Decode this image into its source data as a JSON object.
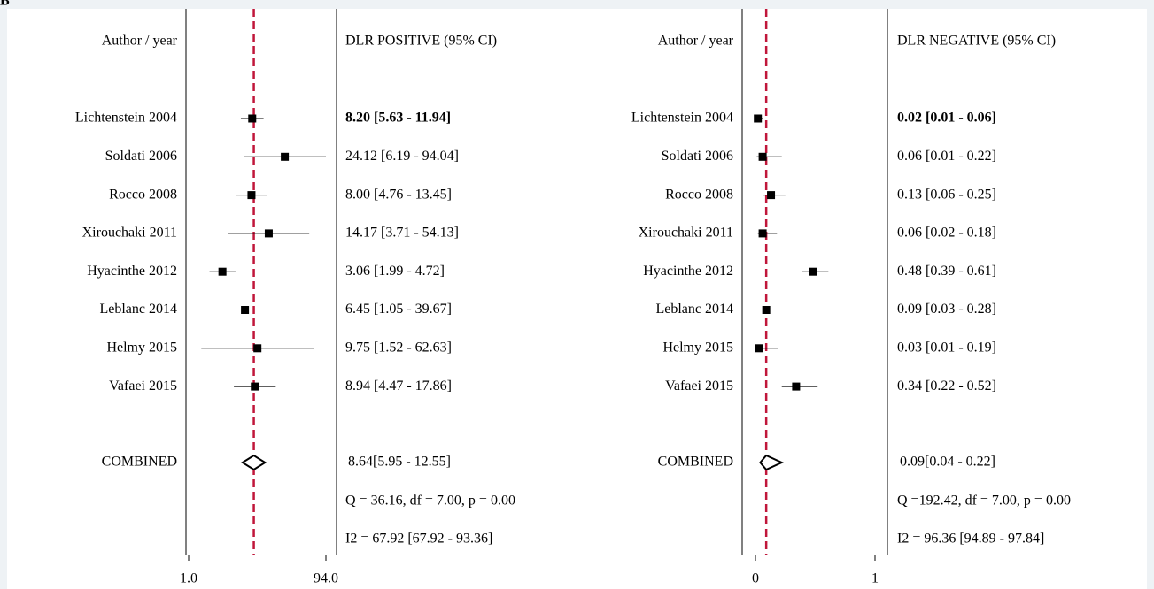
{
  "panel_label": "B",
  "chart_data": [
    {
      "type": "forest",
      "column_headers": [
        "Author / year",
        "DLR POSITIVE (95% CI)"
      ],
      "categories": [
        "Lichtenstein 2004",
        "Soldati 2006",
        "Rocco 2008",
        "Xirouchaki 2011",
        "Hyacinthe 2012",
        "Leblanc 2014",
        "Helmy 2015",
        "Vafaei 2015"
      ],
      "values": [
        8.2,
        24.12,
        8.0,
        14.17,
        3.06,
        6.45,
        9.75,
        8.94
      ],
      "lower": [
        5.63,
        6.19,
        4.76,
        3.71,
        1.99,
        1.05,
        1.52,
        4.47
      ],
      "upper": [
        11.94,
        94.04,
        13.45,
        54.13,
        4.72,
        39.67,
        62.63,
        17.86
      ],
      "value_labels": [
        "8.20 [5.63 - 11.94]",
        "24.12 [6.19 - 94.04]",
        "8.00 [4.76 - 13.45]",
        "14.17 [3.71 - 54.13]",
        "3.06 [1.99 - 4.72]",
        "6.45 [1.05 - 39.67]",
        "9.75 [1.52 - 62.63]",
        "8.94 [4.47 - 17.86]"
      ],
      "combined": {
        "name": "COMBINED",
        "value": 8.64,
        "lower": 5.95,
        "upper": 12.55,
        "value_label": "8.64[5.95 - 12.55]"
      },
      "heterogeneity": [
        "Q = 36.16, df = 7.00, p =  0.00",
        "I2 = 67.92 [67.92 - 93.36]"
      ],
      "log_scale": true,
      "xlim": [
        1,
        94
      ],
      "xticks": [
        {
          "value": 1,
          "label": "1.0"
        },
        {
          "value": 94,
          "label": "94.0"
        }
      ],
      "marker_color": "#000000",
      "reference_line_color": "#c0163a"
    },
    {
      "type": "forest",
      "column_headers": [
        "Author / year",
        "DLR NEGATIVE (95% CI)"
      ],
      "categories": [
        "Lichtenstein 2004",
        "Soldati 2006",
        "Rocco 2008",
        "Xirouchaki 2011",
        "Hyacinthe 2012",
        "Leblanc 2014",
        "Helmy 2015",
        "Vafaei 2015"
      ],
      "values": [
        0.02,
        0.06,
        0.13,
        0.06,
        0.48,
        0.09,
        0.03,
        0.34
      ],
      "lower": [
        0.01,
        0.01,
        0.06,
        0.02,
        0.39,
        0.03,
        0.01,
        0.22
      ],
      "upper": [
        0.06,
        0.22,
        0.25,
        0.18,
        0.61,
        0.28,
        0.19,
        0.52
      ],
      "value_labels": [
        "0.02 [0.01 - 0.06]",
        "0.06 [0.01 - 0.22]",
        "0.13 [0.06 - 0.25]",
        "0.06 [0.02 - 0.18]",
        "0.48 [0.39 - 0.61]",
        "0.09 [0.03 - 0.28]",
        "0.03 [0.01 - 0.19]",
        "0.34 [0.22 - 0.52]"
      ],
      "combined": {
        "name": "COMBINED",
        "value": 0.09,
        "lower": 0.04,
        "upper": 0.22,
        "value_label": "0.09[0.04 - 0.22]"
      },
      "heterogeneity": [
        "Q =192.42, df = 7.00, p =  0.00",
        "I2 = 96.36 [94.89 - 97.84]"
      ],
      "log_scale": false,
      "xlim": [
        0,
        1
      ],
      "xticks": [
        0,
        1
      ],
      "marker_color": "#000000",
      "reference_line_color": "#c0163a"
    }
  ]
}
